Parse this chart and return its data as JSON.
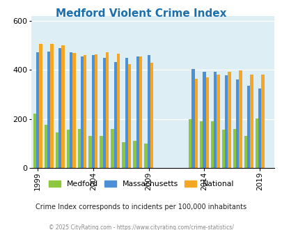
{
  "title": "Medford Violent Crime Index",
  "title_color": "#1a6faf",
  "subtitle": "Crime Index corresponds to incidents per 100,000 inhabitants",
  "footer": "© 2025 CityRating.com - https://www.cityrating.com/crime-statistics/",
  "years": [
    1999,
    2000,
    2001,
    2002,
    2003,
    2004,
    2005,
    2006,
    2007,
    2008,
    2009,
    2013,
    2014,
    2015,
    2016,
    2017,
    2018,
    2019
  ],
  "medford": [
    222,
    175,
    145,
    155,
    160,
    130,
    130,
    160,
    105,
    110,
    100,
    198,
    190,
    190,
    155,
    158,
    130,
    202
  ],
  "massachusetts": [
    472,
    475,
    490,
    472,
    455,
    460,
    450,
    432,
    450,
    455,
    460,
    405,
    393,
    393,
    378,
    360,
    335,
    323
  ],
  "national": [
    505,
    507,
    502,
    470,
    462,
    465,
    472,
    467,
    425,
    455,
    430,
    363,
    371,
    380,
    393,
    397,
    382,
    380
  ],
  "color_medford": "#8dc63f",
  "color_massachusetts": "#4d90d5",
  "color_national": "#f5a623",
  "bg_color": "#ddeef5",
  "ylim": [
    0,
    620
  ],
  "yticks": [
    0,
    200,
    400,
    600
  ],
  "grid_color": "#ffffff",
  "tick_years": [
    1999,
    2004,
    2009,
    2014,
    2019
  ],
  "legend_label_medford": "Medford",
  "legend_label_massachusetts": "Massachusetts",
  "legend_label_national": "National"
}
